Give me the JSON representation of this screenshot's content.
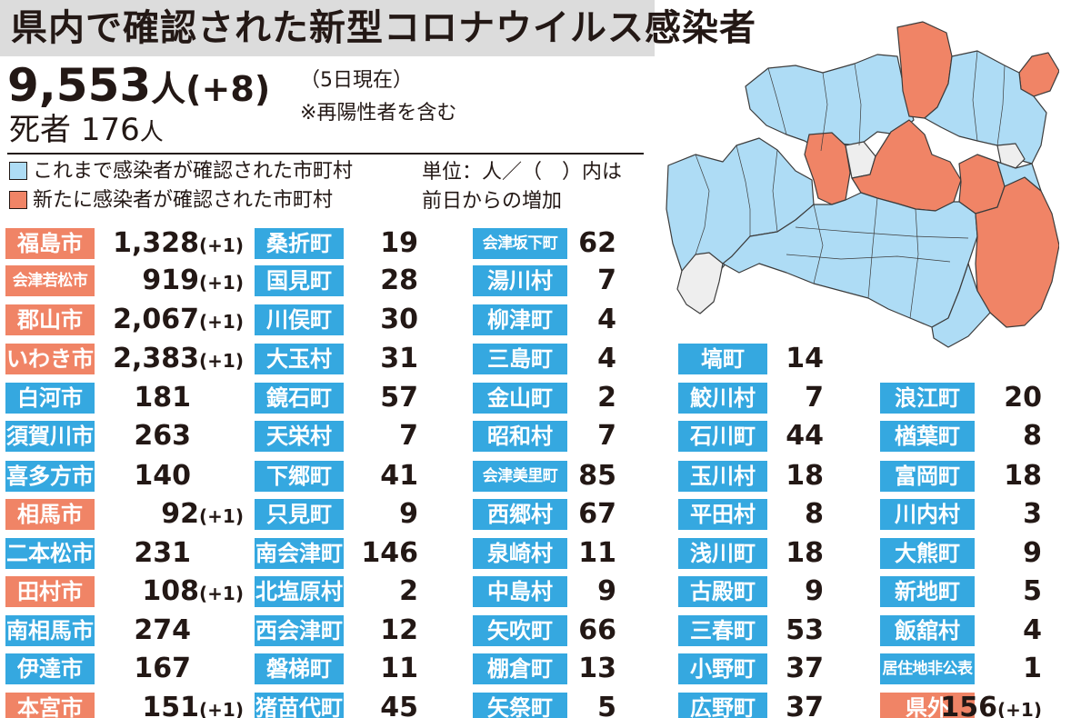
{
  "colors": {
    "existing": "#35a8e0",
    "new": "#f08466",
    "map_existing": "#aedcf5",
    "map_new": "#f08466",
    "map_none": "#eeeeee"
  },
  "title": "県内で確認された新型コロナウイルス感染者",
  "summary": {
    "total": "9,553",
    "total_unit": "人",
    "total_delta": "(+8)",
    "deaths_label": "死者",
    "deaths": "176",
    "deaths_unit": "人",
    "as_of": "（5日現在）",
    "note": "※再陽性者を含む"
  },
  "legend": {
    "existing": "これまで感染者が確認された市町村",
    "new": "新たに感染者が確認された市町村",
    "unit_line1": "単位：人／（　）内は",
    "unit_line2": "前日からの増加"
  },
  "columns": [
    [
      {
        "name": "福島市",
        "count": "1,328",
        "delta": "(+1)",
        "status": "new"
      },
      {
        "name": "会津若松市",
        "count": "919",
        "delta": "(+1)",
        "status": "new"
      },
      {
        "name": "郡山市",
        "count": "2,067",
        "delta": "(+1)",
        "status": "new"
      },
      {
        "name": "いわき市",
        "count": "2,383",
        "delta": "(+1)",
        "status": "new"
      },
      {
        "name": "白河市",
        "count": "181",
        "delta": "",
        "status": "existing"
      },
      {
        "name": "須賀川市",
        "count": "263",
        "delta": "",
        "status": "existing"
      },
      {
        "name": "喜多方市",
        "count": "140",
        "delta": "",
        "status": "existing"
      },
      {
        "name": "相馬市",
        "count": "92",
        "delta": "(+1)",
        "status": "new"
      },
      {
        "name": "二本松市",
        "count": "231",
        "delta": "",
        "status": "existing"
      },
      {
        "name": "田村市",
        "count": "108",
        "delta": "(+1)",
        "status": "new"
      },
      {
        "name": "南相馬市",
        "count": "274",
        "delta": "",
        "status": "existing"
      },
      {
        "name": "伊達市",
        "count": "167",
        "delta": "",
        "status": "existing"
      },
      {
        "name": "本宮市",
        "count": "151",
        "delta": "(+1)",
        "status": "new"
      }
    ],
    [
      {
        "name": "桑折町",
        "count": "19",
        "delta": "",
        "status": "existing"
      },
      {
        "name": "国見町",
        "count": "28",
        "delta": "",
        "status": "existing"
      },
      {
        "name": "川俣町",
        "count": "30",
        "delta": "",
        "status": "existing"
      },
      {
        "name": "大玉村",
        "count": "31",
        "delta": "",
        "status": "existing"
      },
      {
        "name": "鏡石町",
        "count": "57",
        "delta": "",
        "status": "existing"
      },
      {
        "name": "天栄村",
        "count": "7",
        "delta": "",
        "status": "existing"
      },
      {
        "name": "下郷町",
        "count": "41",
        "delta": "",
        "status": "existing"
      },
      {
        "name": "只見町",
        "count": "9",
        "delta": "",
        "status": "existing"
      },
      {
        "name": "南会津町",
        "count": "146",
        "delta": "",
        "status": "existing"
      },
      {
        "name": "北塩原村",
        "count": "2",
        "delta": "",
        "status": "existing"
      },
      {
        "name": "西会津町",
        "count": "12",
        "delta": "",
        "status": "existing"
      },
      {
        "name": "磐梯町",
        "count": "11",
        "delta": "",
        "status": "existing"
      },
      {
        "name": "猪苗代町",
        "count": "45",
        "delta": "",
        "status": "existing"
      }
    ],
    [
      {
        "name": "会津坂下町",
        "count": "62",
        "delta": "",
        "status": "existing"
      },
      {
        "name": "湯川村",
        "count": "7",
        "delta": "",
        "status": "existing"
      },
      {
        "name": "柳津町",
        "count": "4",
        "delta": "",
        "status": "existing"
      },
      {
        "name": "三島町",
        "count": "4",
        "delta": "",
        "status": "existing"
      },
      {
        "name": "金山町",
        "count": "2",
        "delta": "",
        "status": "existing"
      },
      {
        "name": "昭和村",
        "count": "7",
        "delta": "",
        "status": "existing"
      },
      {
        "name": "会津美里町",
        "count": "85",
        "delta": "",
        "status": "existing"
      },
      {
        "name": "西郷村",
        "count": "67",
        "delta": "",
        "status": "existing"
      },
      {
        "name": "泉崎村",
        "count": "11",
        "delta": "",
        "status": "existing"
      },
      {
        "name": "中島村",
        "count": "9",
        "delta": "",
        "status": "existing"
      },
      {
        "name": "矢吹町",
        "count": "66",
        "delta": "",
        "status": "existing"
      },
      {
        "name": "棚倉町",
        "count": "13",
        "delta": "",
        "status": "existing"
      },
      {
        "name": "矢祭町",
        "count": "5",
        "delta": "",
        "status": "existing"
      }
    ],
    [
      {
        "name": "塙町",
        "count": "14",
        "delta": "",
        "status": "existing"
      },
      {
        "name": "鮫川村",
        "count": "7",
        "delta": "",
        "status": "existing"
      },
      {
        "name": "石川町",
        "count": "44",
        "delta": "",
        "status": "existing"
      },
      {
        "name": "玉川村",
        "count": "18",
        "delta": "",
        "status": "existing"
      },
      {
        "name": "平田村",
        "count": "8",
        "delta": "",
        "status": "existing"
      },
      {
        "name": "浅川町",
        "count": "18",
        "delta": "",
        "status": "existing"
      },
      {
        "name": "古殿町",
        "count": "9",
        "delta": "",
        "status": "existing"
      },
      {
        "name": "三春町",
        "count": "53",
        "delta": "",
        "status": "existing"
      },
      {
        "name": "小野町",
        "count": "37",
        "delta": "",
        "status": "existing"
      },
      {
        "name": "広野町",
        "count": "37",
        "delta": "",
        "status": "existing"
      }
    ],
    [
      {
        "name": "浪江町",
        "count": "20",
        "delta": "",
        "status": "existing"
      },
      {
        "name": "楢葉町",
        "count": "8",
        "delta": "",
        "status": "existing"
      },
      {
        "name": "富岡町",
        "count": "18",
        "delta": "",
        "status": "existing"
      },
      {
        "name": "川内村",
        "count": "3",
        "delta": "",
        "status": "existing"
      },
      {
        "name": "大熊町",
        "count": "9",
        "delta": "",
        "status": "existing"
      },
      {
        "name": "新地町",
        "count": "5",
        "delta": "",
        "status": "existing"
      },
      {
        "name": "飯舘村",
        "count": "4",
        "delta": "",
        "status": "existing"
      },
      {
        "name": "居住地非公表",
        "count": "1",
        "delta": "",
        "status": "existing"
      },
      {
        "name": "県外",
        "count": "156",
        "delta": "(+1)",
        "status": "new"
      }
    ]
  ]
}
